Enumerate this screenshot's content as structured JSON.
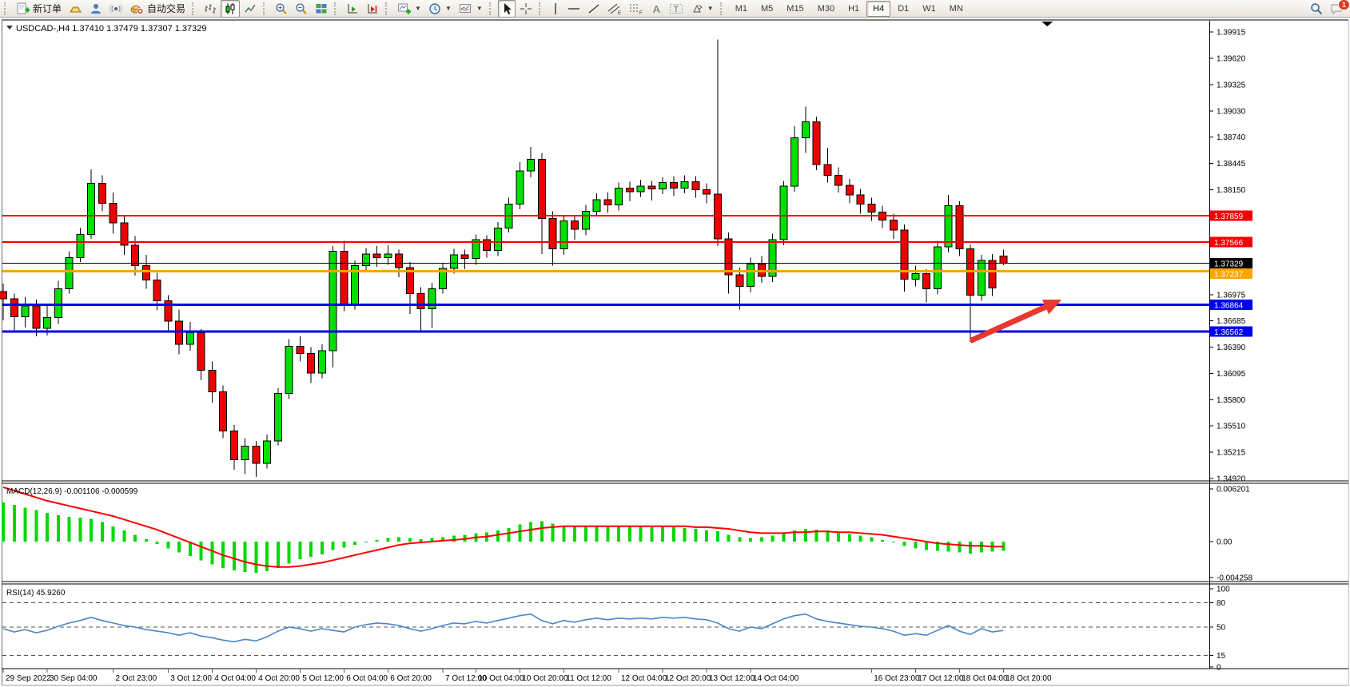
{
  "toolbar": {
    "new_order": "新订单",
    "autotrading": "自动交易",
    "timeframes": [
      "M1",
      "M5",
      "M15",
      "M30",
      "H1",
      "H4",
      "D1",
      "W1",
      "MN"
    ],
    "active_timeframe": "H4",
    "notification_badge": "1"
  },
  "window": {
    "title_symbol": "USDCAD-,H4",
    "title_ohlc": "1.37410 1.37479 1.37307 1.37329"
  },
  "chart_data": [
    {
      "type": "candlestick",
      "title": "USDCAD-,H4",
      "current_bar": {
        "open": 1.3741,
        "high": 1.37479,
        "low": 1.37307,
        "close": 1.37329
      },
      "ylim": [
        1.3492,
        1.39915
      ],
      "y_ticks": [
        "1.39915",
        "1.39620",
        "1.39325",
        "1.39030",
        "1.38740",
        "1.38445",
        "1.38150",
        "1.36975",
        "1.36685",
        "1.36390",
        "1.36095",
        "1.35800",
        "1.35510",
        "1.35215",
        "1.34920"
      ],
      "x_labels": [
        {
          "t": "29 Sep 2022",
          "b": 0
        },
        {
          "t": "30 Sep 04:00",
          "b": 4
        },
        {
          "t": "2 Oct 23:00",
          "b": 10
        },
        {
          "t": "3 Oct 12:00",
          "b": 15
        },
        {
          "t": "4 Oct 04:00",
          "b": 19
        },
        {
          "t": "4 Oct 20:00",
          "b": 23
        },
        {
          "t": "5 Oct 12:00",
          "b": 27
        },
        {
          "t": "6 Oct 04:00",
          "b": 31
        },
        {
          "t": "6 Oct 20:00",
          "b": 35
        },
        {
          "t": "7 Oct 12:00",
          "b": 40
        },
        {
          "t": "10 Oct 04:00",
          "b": 43
        },
        {
          "t": "10 Oct 20:00",
          "b": 47
        },
        {
          "t": "11 Oct 12:00",
          "b": 51
        },
        {
          "t": "12 Oct 04:00",
          "b": 56
        },
        {
          "t": "12 Oct 20:00",
          "b": 60
        },
        {
          "t": "13 Oct 12:00",
          "b": 64
        },
        {
          "t": "14 Oct 04:00",
          "b": 68
        },
        {
          "t": "16 Oct 23:00",
          "b": 79
        },
        {
          "t": "17 Oct 12:00",
          "b": 83
        },
        {
          "t": "18 Oct 04:00",
          "b": 87
        },
        {
          "t": "18 Oct 20:00",
          "b": 91
        }
      ],
      "up_color": "#00E000",
      "down_color": "#EE0000",
      "candles": [
        [
          1.3701,
          1.371,
          1.3669,
          1.3693
        ],
        [
          1.3693,
          1.3699,
          1.3656,
          1.3673
        ],
        [
          1.3673,
          1.3695,
          1.3661,
          1.3685
        ],
        [
          1.3685,
          1.3692,
          1.3651,
          1.366
        ],
        [
          1.366,
          1.3686,
          1.3652,
          1.3672
        ],
        [
          1.3672,
          1.3713,
          1.3665,
          1.3704
        ],
        [
          1.3704,
          1.3746,
          1.3699,
          1.3739
        ],
        [
          1.3739,
          1.3772,
          1.3734,
          1.3765
        ],
        [
          1.3765,
          1.3838,
          1.376,
          1.3822
        ],
        [
          1.3822,
          1.3831,
          1.3791,
          1.38
        ],
        [
          1.38,
          1.3812,
          1.3766,
          1.3778
        ],
        [
          1.3778,
          1.3786,
          1.3742,
          1.3753
        ],
        [
          1.3753,
          1.3763,
          1.3719,
          1.373
        ],
        [
          1.373,
          1.3742,
          1.3704,
          1.3714
        ],
        [
          1.3714,
          1.3722,
          1.368,
          1.3691
        ],
        [
          1.3691,
          1.3697,
          1.3655,
          1.3668
        ],
        [
          1.3668,
          1.3681,
          1.3631,
          1.3642
        ],
        [
          1.3642,
          1.3667,
          1.3635,
          1.3655
        ],
        [
          1.3655,
          1.3659,
          1.3602,
          1.3613
        ],
        [
          1.3613,
          1.3623,
          1.3577,
          1.3589
        ],
        [
          1.3589,
          1.3596,
          1.3537,
          1.3545
        ],
        [
          1.3545,
          1.3552,
          1.3502,
          1.3513
        ],
        [
          1.3513,
          1.3537,
          1.3497,
          1.3528
        ],
        [
          1.3528,
          1.3534,
          1.3494,
          1.3509
        ],
        [
          1.3509,
          1.3541,
          1.3503,
          1.3534
        ],
        [
          1.3534,
          1.3593,
          1.3529,
          1.3587
        ],
        [
          1.3587,
          1.3648,
          1.3581,
          1.364
        ],
        [
          1.364,
          1.3651,
          1.3623,
          1.3632
        ],
        [
          1.3632,
          1.3639,
          1.3599,
          1.361
        ],
        [
          1.361,
          1.3642,
          1.3604,
          1.3635
        ],
        [
          1.3635,
          1.3752,
          1.3616,
          1.3746
        ],
        [
          1.3746,
          1.3758,
          1.3679,
          1.3687
        ],
        [
          1.3687,
          1.3736,
          1.3681,
          1.373
        ],
        [
          1.373,
          1.375,
          1.3723,
          1.3743
        ],
        [
          1.3743,
          1.3752,
          1.3729,
          1.3739
        ],
        [
          1.3739,
          1.3753,
          1.3731,
          1.3743
        ],
        [
          1.3743,
          1.3748,
          1.3717,
          1.3728
        ],
        [
          1.3728,
          1.3734,
          1.3676,
          1.3699
        ],
        [
          1.3699,
          1.3706,
          1.3657,
          1.3682
        ],
        [
          1.3682,
          1.3711,
          1.366,
          1.3704
        ],
        [
          1.3704,
          1.3733,
          1.3699,
          1.3727
        ],
        [
          1.3727,
          1.3749,
          1.3721,
          1.3742
        ],
        [
          1.3742,
          1.3748,
          1.3726,
          1.3738
        ],
        [
          1.3738,
          1.3765,
          1.3731,
          1.3759
        ],
        [
          1.3759,
          1.3764,
          1.3739,
          1.3747
        ],
        [
          1.3747,
          1.3779,
          1.3741,
          1.3772
        ],
        [
          1.3772,
          1.3806,
          1.3767,
          1.3799
        ],
        [
          1.3799,
          1.3846,
          1.3793,
          1.3836
        ],
        [
          1.3836,
          1.3863,
          1.3829,
          1.3849
        ],
        [
          1.3849,
          1.3856,
          1.3743,
          1.3783
        ],
        [
          1.3783,
          1.3791,
          1.373,
          1.3749
        ],
        [
          1.3749,
          1.3786,
          1.3742,
          1.378
        ],
        [
          1.378,
          1.3787,
          1.3759,
          1.3771
        ],
        [
          1.3771,
          1.3798,
          1.3764,
          1.3791
        ],
        [
          1.3791,
          1.3811,
          1.3785,
          1.3804
        ],
        [
          1.3804,
          1.3812,
          1.3789,
          1.3798
        ],
        [
          1.3798,
          1.3823,
          1.3792,
          1.3817
        ],
        [
          1.3817,
          1.3824,
          1.3802,
          1.3813
        ],
        [
          1.3813,
          1.3826,
          1.3807,
          1.3819
        ],
        [
          1.3819,
          1.3825,
          1.3803,
          1.3816
        ],
        [
          1.3816,
          1.3829,
          1.381,
          1.3823
        ],
        [
          1.3823,
          1.383,
          1.3808,
          1.3817
        ],
        [
          1.3817,
          1.3831,
          1.3811,
          1.3824
        ],
        [
          1.3824,
          1.383,
          1.3806,
          1.3815
        ],
        [
          1.3815,
          1.3822,
          1.38,
          1.381
        ],
        [
          1.381,
          1.3983,
          1.3752,
          1.376
        ],
        [
          1.376,
          1.3767,
          1.3699,
          1.372
        ],
        [
          1.372,
          1.3728,
          1.3681,
          1.3707
        ],
        [
          1.3707,
          1.3739,
          1.37,
          1.3732
        ],
        [
          1.3732,
          1.3741,
          1.3711,
          1.3718
        ],
        [
          1.3718,
          1.3766,
          1.3712,
          1.3759
        ],
        [
          1.3759,
          1.3825,
          1.3753,
          1.3819
        ],
        [
          1.3819,
          1.3886,
          1.3813,
          1.3873
        ],
        [
          1.3873,
          1.3908,
          1.3856,
          1.3891
        ],
        [
          1.3891,
          1.3897,
          1.3837,
          1.3843
        ],
        [
          1.3843,
          1.3862,
          1.3823,
          1.3831
        ],
        [
          1.3831,
          1.384,
          1.3812,
          1.382
        ],
        [
          1.382,
          1.3827,
          1.38,
          1.3809
        ],
        [
          1.3809,
          1.3816,
          1.3788,
          1.3799
        ],
        [
          1.3799,
          1.3806,
          1.378,
          1.379
        ],
        [
          1.379,
          1.3797,
          1.3772,
          1.3781
        ],
        [
          1.3781,
          1.3788,
          1.376,
          1.377
        ],
        [
          1.377,
          1.3776,
          1.3701,
          1.3715
        ],
        [
          1.3715,
          1.373,
          1.3707,
          1.3721
        ],
        [
          1.3721,
          1.3726,
          1.3689,
          1.3704
        ],
        [
          1.3704,
          1.3758,
          1.3698,
          1.3751
        ],
        [
          1.3751,
          1.3809,
          1.3745,
          1.3797
        ],
        [
          1.3797,
          1.3802,
          1.3741,
          1.3749
        ],
        [
          1.3749,
          1.3754,
          1.3645,
          1.3697
        ],
        [
          1.3697,
          1.3742,
          1.3691,
          1.3736
        ],
        [
          1.3736,
          1.3743,
          1.3696,
          1.3705
        ],
        [
          1.3741,
          1.37479,
          1.37307,
          1.37329
        ]
      ],
      "hlines": [
        {
          "price": 1.37859,
          "label": "1.37859",
          "color": "#F40000",
          "width": 2
        },
        {
          "price": 1.37566,
          "label": "1.37566",
          "color": "#F40000",
          "width": 2
        },
        {
          "price": 1.37329,
          "label": "1.37329",
          "color": "#000000",
          "width": 1,
          "role": "bid-line"
        },
        {
          "price": 1.37237,
          "label": "1.37237",
          "color": "#FFA500",
          "width": 3
        },
        {
          "price": 1.36864,
          "label": "1.36864",
          "color": "#0000F0",
          "width": 3
        },
        {
          "price": 1.36562,
          "label": "1.36562",
          "color": "#0000F0",
          "width": 3
        }
      ],
      "arrow": {
        "x1_bar": 88,
        "y1_price": 1.3646,
        "x2_bar": 96.3,
        "y2_price": 1.3692,
        "color": "#E8382F"
      },
      "shift_marker_bar": 95
    },
    {
      "type": "bar",
      "name": "MACD",
      "label": "MACD(12,26,9) -0.001106 -0.000599",
      "value": -0.001106,
      "signal_value": -0.000599,
      "ylim": [
        -0.004258,
        0.006201
      ],
      "y_ticks": [
        "0.006201",
        "0.00",
        "-0.004258"
      ],
      "bar_color": "#00D800",
      "signal_color": "#FF0000",
      "values": [
        0.0046,
        0.0043,
        0.004,
        0.0037,
        0.0034,
        0.0031,
        0.0029,
        0.0028,
        0.0027,
        0.0023,
        0.0018,
        0.0013,
        0.0008,
        0.0003,
        -0.0003,
        -0.0008,
        -0.0013,
        -0.0017,
        -0.0022,
        -0.0027,
        -0.0031,
        -0.0034,
        -0.0036,
        -0.0037,
        -0.0035,
        -0.0031,
        -0.0026,
        -0.0021,
        -0.0018,
        -0.0015,
        -0.001,
        -0.0007,
        -0.0004,
        -0.0001,
        0.0002,
        0.0004,
        0.0005,
        0.0004,
        0.0003,
        0.0004,
        0.0005,
        0.0007,
        0.0008,
        0.001,
        0.0011,
        0.0013,
        0.0016,
        0.002,
        0.0023,
        0.0024,
        0.0021,
        0.0019,
        0.0018,
        0.0018,
        0.0019,
        0.0018,
        0.0019,
        0.0018,
        0.0018,
        0.0017,
        0.0018,
        0.0017,
        0.0016,
        0.0015,
        0.0013,
        0.0012,
        0.0008,
        0.0005,
        0.0004,
        0.0005,
        0.0007,
        0.001,
        0.0013,
        0.0015,
        0.0014,
        0.0013,
        0.0011,
        0.0009,
        0.0007,
        0.0005,
        0.0002,
        -0.0001,
        -0.0005,
        -0.0008,
        -0.001,
        -0.0011,
        -0.0012,
        -0.0013,
        -0.0014,
        -0.0013,
        -0.0012,
        -0.001106
      ],
      "signal": [
        0.0064,
        0.006,
        0.0056,
        0.0052,
        0.0048,
        0.0045,
        0.0042,
        0.0039,
        0.0036,
        0.0033,
        0.003,
        0.0026,
        0.0022,
        0.0018,
        0.0014,
        0.0009,
        0.0004,
        -0.0001,
        -0.0006,
        -0.0011,
        -0.0016,
        -0.002,
        -0.0024,
        -0.0027,
        -0.0029,
        -0.003,
        -0.003,
        -0.0029,
        -0.0027,
        -0.0025,
        -0.0022,
        -0.0019,
        -0.0016,
        -0.0013,
        -0.001,
        -0.0007,
        -0.0004,
        -0.0002,
        -0.0001,
        0.0,
        0.0001,
        0.0002,
        0.0003,
        0.0005,
        0.0006,
        0.0008,
        0.001,
        0.0012,
        0.0014,
        0.0016,
        0.0017,
        0.0018,
        0.0018,
        0.0018,
        0.0018,
        0.0018,
        0.0018,
        0.0018,
        0.0018,
        0.0018,
        0.0018,
        0.0018,
        0.0018,
        0.0017,
        0.0017,
        0.0016,
        0.0015,
        0.0013,
        0.0011,
        0.001,
        0.001,
        0.001,
        0.0011,
        0.0011,
        0.0012,
        0.0012,
        0.0011,
        0.0011,
        0.001,
        0.0009,
        0.0008,
        0.0006,
        0.0004,
        0.0002,
        0.0,
        -0.0002,
        -0.0003,
        -0.0004,
        -0.0005,
        -0.0005,
        -0.0006,
        -0.000599
      ]
    },
    {
      "type": "line",
      "name": "RSI",
      "label": "RSI(14) 45.9260",
      "value": 45.926,
      "ylim": [
        0,
        100
      ],
      "levels": [
        80,
        50,
        15
      ],
      "y_ticks": [
        "100",
        "80",
        "50",
        "15",
        "0"
      ],
      "line_color": "#4A86C8",
      "values": [
        48,
        44,
        47,
        43,
        46,
        51,
        55,
        58,
        62,
        58,
        55,
        52,
        50,
        47,
        45,
        43,
        40,
        43,
        39,
        37,
        34,
        32,
        35,
        33,
        38,
        45,
        50,
        48,
        45,
        48,
        46,
        44,
        50,
        53,
        55,
        54,
        52,
        48,
        45,
        48,
        52,
        55,
        54,
        57,
        55,
        58,
        61,
        64,
        66,
        58,
        54,
        58,
        56,
        59,
        61,
        59,
        61,
        60,
        61,
        60,
        62,
        61,
        62,
        60,
        59,
        55,
        48,
        45,
        50,
        48,
        54,
        60,
        64,
        66,
        60,
        57,
        55,
        53,
        51,
        50,
        48,
        45,
        40,
        42,
        40,
        46,
        52,
        45,
        41,
        48,
        44,
        45.93
      ]
    }
  ]
}
